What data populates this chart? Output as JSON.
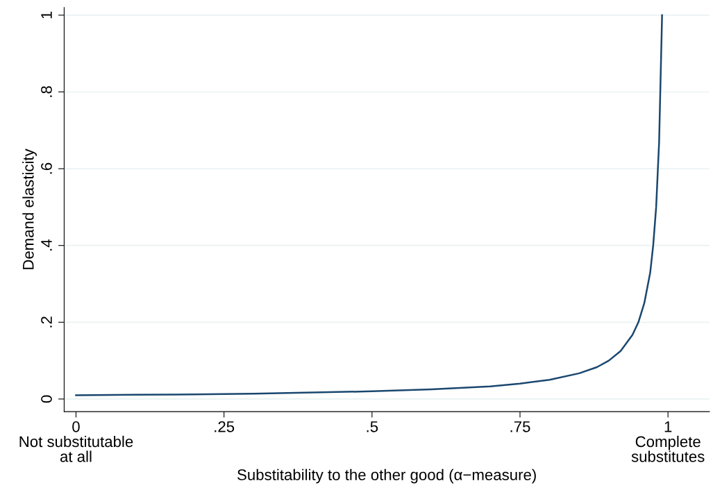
{
  "chart_data": {
    "type": "line",
    "xlabel": "Substitability to the other good (α−measure)",
    "ylabel": "Demand elasticity",
    "x": [
      0,
      0.1,
      0.2,
      0.3,
      0.4,
      0.5,
      0.6,
      0.7,
      0.75,
      0.8,
      0.85,
      0.88,
      0.9,
      0.92,
      0.94,
      0.95,
      0.96,
      0.97,
      0.975,
      0.98,
      0.985,
      0.99
    ],
    "series": [
      {
        "color": "#1a476f",
        "values": [
          0.01,
          0.011,
          0.012,
          0.014,
          0.017,
          0.02,
          0.025,
          0.033,
          0.04,
          0.05,
          0.067,
          0.083,
          0.1,
          0.125,
          0.167,
          0.2,
          0.25,
          0.33,
          0.4,
          0.5,
          0.67,
          1.0
        ]
      }
    ],
    "xlim": [
      -0.02,
      1.07
    ],
    "ylim": [
      -0.033,
      1.02
    ],
    "xticks": [
      {
        "value": 0,
        "label": "0\nNot substitutable\nat all"
      },
      {
        "value": 0.25,
        "label": ".25"
      },
      {
        "value": 0.5,
        "label": ".5"
      },
      {
        "value": 0.75,
        "label": ".75"
      },
      {
        "value": 1,
        "label": "1\nComplete\nsubstitutes"
      }
    ],
    "yticks": [
      0,
      {
        "value": 0.2,
        "label": ".2"
      },
      {
        "value": 0.4,
        "label": ".4"
      },
      {
        "value": 0.6,
        "label": ".6"
      },
      {
        "value": 0.8,
        "label": ".8"
      },
      1
    ],
    "grid": "y",
    "marker": "none",
    "line_style": "solid"
  }
}
